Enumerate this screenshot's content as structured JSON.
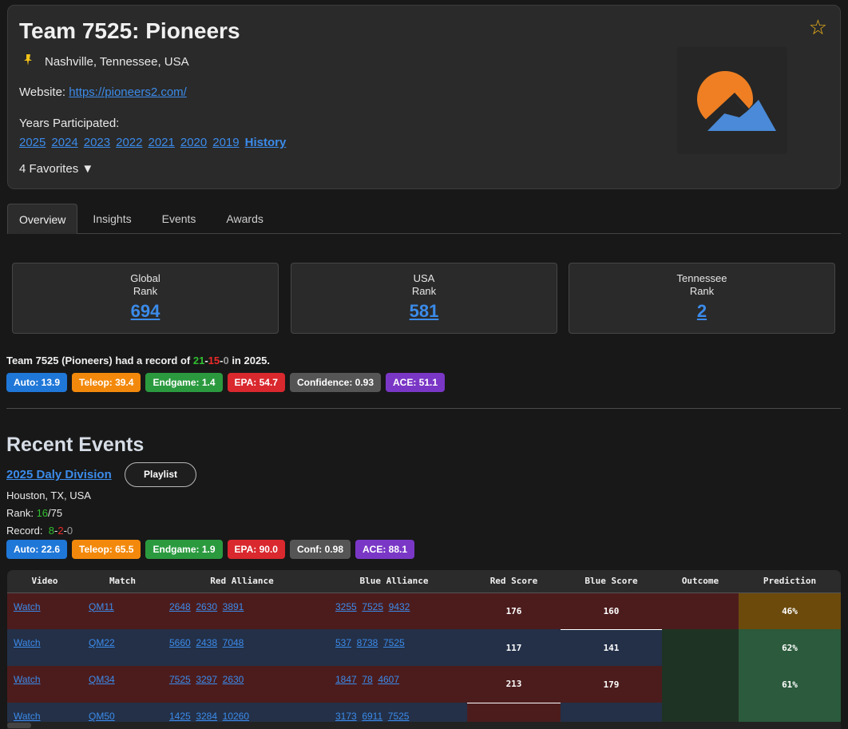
{
  "team": {
    "title": "Team 7525: Pioneers",
    "location": "Nashville, Tennessee, USA",
    "website_label": "Website:",
    "website_url": "https://pioneers2.com/",
    "years_label": "Years Participated:",
    "years": [
      "2025",
      "2024",
      "2023",
      "2022",
      "2021",
      "2020",
      "2019"
    ],
    "history_label": "History",
    "favorites": "4 Favorites ▼",
    "star": "☆"
  },
  "tabs": [
    {
      "label": "Overview",
      "active": true
    },
    {
      "label": "Insights",
      "active": false
    },
    {
      "label": "Events",
      "active": false
    },
    {
      "label": "Awards",
      "active": false
    }
  ],
  "ranks": [
    {
      "line1": "Global",
      "line2": "Rank",
      "value": "694"
    },
    {
      "line1": "USA",
      "line2": "Rank",
      "value": "581"
    },
    {
      "line1": "Tennessee",
      "line2": "Rank",
      "value": "2"
    }
  ],
  "record": {
    "prefix": "Team 7525 (Pioneers) had a record of ",
    "wins": "21",
    "losses": "15",
    "ties": "0",
    "suffix": " in 2025."
  },
  "season_badges": {
    "auto": "Auto: 13.9",
    "teleop": "Teleop: 39.4",
    "endgame": "Endgame: 1.4",
    "epa": "EPA: 54.7",
    "confidence": "Confidence: 0.93",
    "ace": "ACE: 51.1"
  },
  "recent_events": {
    "title": "Recent Events",
    "event_name": "2025 Daly Division",
    "playlist": "Playlist",
    "location": "Houston, TX, USA",
    "rank_label": "Rank: ",
    "rank": "16",
    "rank_total": "/75",
    "record_label": "Record: ",
    "wins": "8",
    "losses": "2",
    "ties": "0",
    "badges": {
      "auto": "Auto: 22.6",
      "teleop": "Teleop: 65.5",
      "endgame": "Endgame: 1.9",
      "epa": "EPA: 90.0",
      "conf": "Conf: 0.98",
      "ace": "ACE: 88.1"
    }
  },
  "match_table": {
    "headers": [
      "Video",
      "Match",
      "Red Alliance",
      "Blue Alliance",
      "Red Score",
      "Blue Score",
      "Outcome",
      "Prediction"
    ],
    "rows": [
      {
        "video": "Watch",
        "match": "QM11",
        "red": [
          "2648",
          "2630",
          "3891"
        ],
        "blue": [
          "3255",
          "7525",
          "9432"
        ],
        "red_score": "176",
        "blue_score": "160",
        "prediction": "46%"
      },
      {
        "video": "Watch",
        "match": "QM22",
        "red": [
          "5660",
          "2438",
          "7048"
        ],
        "blue": [
          "537",
          "8738",
          "7525"
        ],
        "red_score": "117",
        "blue_score": "141",
        "prediction": "62%"
      },
      {
        "video": "Watch",
        "match": "QM34",
        "red": [
          "7525",
          "3297",
          "2630"
        ],
        "blue": [
          "1847",
          "78",
          "4607"
        ],
        "red_score": "213",
        "blue_score": "179",
        "prediction": "61%"
      },
      {
        "video": "Watch",
        "match": "QM50",
        "red": [
          "1425",
          "3284",
          "10260"
        ],
        "blue": [
          "3173",
          "6911",
          "7525"
        ],
        "red_score": "",
        "blue_score": "",
        "prediction": ""
      }
    ]
  },
  "colors": {
    "link": "#3b8bea",
    "win": "#2fbf2f",
    "loss": "#ee2a2a",
    "star": "#f2b51b",
    "logo_sun": "#ef7f22",
    "logo_mountain": "#4a8ad8"
  }
}
